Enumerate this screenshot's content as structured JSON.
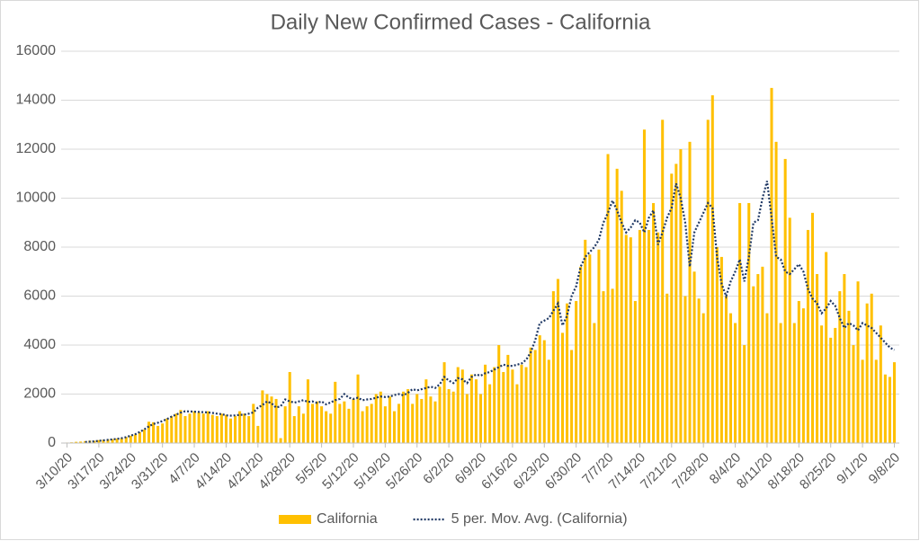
{
  "chart_data": {
    "type": "bar",
    "title": "Daily New Confirmed Cases - California",
    "categories": [
      "3/10/20",
      null,
      null,
      null,
      null,
      null,
      null,
      "3/17/20",
      null,
      null,
      null,
      null,
      null,
      null,
      "3/24/20",
      null,
      null,
      null,
      null,
      null,
      null,
      "3/31/20",
      null,
      null,
      null,
      null,
      null,
      null,
      "4/7/20",
      null,
      null,
      null,
      null,
      null,
      null,
      "4/14/20",
      null,
      null,
      null,
      null,
      null,
      null,
      "4/21/20",
      null,
      null,
      null,
      null,
      null,
      null,
      "4/28/20",
      null,
      null,
      null,
      null,
      null,
      null,
      "5/5/20",
      null,
      null,
      null,
      null,
      null,
      null,
      "5/12/20",
      null,
      null,
      null,
      null,
      null,
      null,
      "5/19/20",
      null,
      null,
      null,
      null,
      null,
      null,
      "5/26/20",
      null,
      null,
      null,
      null,
      null,
      null,
      "6/2/20",
      null,
      null,
      null,
      null,
      null,
      null,
      "6/9/20",
      null,
      null,
      null,
      null,
      null,
      null,
      "6/16/20",
      null,
      null,
      null,
      null,
      null,
      null,
      "6/23/20",
      null,
      null,
      null,
      null,
      null,
      null,
      "6/30/20",
      null,
      null,
      null,
      null,
      null,
      null,
      "7/7/20",
      null,
      null,
      null,
      null,
      null,
      null,
      "7/14/20",
      null,
      null,
      null,
      null,
      null,
      null,
      "7/21/20",
      null,
      null,
      null,
      null,
      null,
      null,
      "7/28/20",
      null,
      null,
      null,
      null,
      null,
      null,
      "8/4/20",
      null,
      null,
      null,
      null,
      null,
      null,
      "8/11/20",
      null,
      null,
      null,
      null,
      null,
      null,
      "8/18/20",
      null,
      null,
      null,
      null,
      null,
      null,
      "8/25/20",
      null,
      null,
      null,
      null,
      null,
      null,
      "9/1/20",
      null,
      null,
      null,
      null,
      null,
      null,
      "9/8/20"
    ],
    "series": [
      {
        "name": "California",
        "color": "#ffc000",
        "type": "bar",
        "values": [
          20,
          30,
          50,
          60,
          80,
          100,
          90,
          120,
          130,
          150,
          160,
          180,
          200,
          250,
          300,
          350,
          450,
          550,
          870,
          850,
          700,
          800,
          1000,
          1100,
          1200,
          1350,
          1100,
          1200,
          1300,
          1250,
          1200,
          1300,
          1150,
          1100,
          1200,
          1150,
          1000,
          1100,
          1300,
          1200,
          1100,
          1600,
          700,
          2150,
          2000,
          1900,
          1800,
          200,
          1500,
          2900,
          1100,
          1500,
          1200,
          2600,
          1600,
          1700,
          1500,
          1300,
          1200,
          2500,
          1600,
          1700,
          1400,
          1800,
          2800,
          1300,
          1500,
          1600,
          2000,
          2100,
          1500,
          1900,
          1300,
          1600,
          2100,
          2200,
          1600,
          2000,
          1800,
          2600,
          1900,
          1700,
          2300,
          3300,
          2200,
          2100,
          3100,
          3000,
          2000,
          2800,
          2600,
          2000,
          3200,
          2400,
          3100,
          4000,
          2900,
          3600,
          3000,
          2400,
          3200,
          3100,
          3900,
          3800,
          4400,
          4200,
          3400,
          6200,
          6700,
          4500,
          5700,
          3800,
          5800,
          7200,
          8300,
          7700,
          4900,
          7900,
          6200,
          11800,
          6300,
          11200,
          10300,
          8500,
          8400,
          5800,
          8700,
          12800,
          8700,
          9800,
          8600,
          13200,
          6100,
          11000,
          11400,
          12000,
          6000,
          12300,
          7000,
          5900,
          5300,
          13200,
          14200,
          8000,
          7600,
          6000,
          5300,
          4900,
          9800,
          4000,
          9800,
          6400,
          6900,
          7200,
          5300,
          14500,
          12300,
          4900,
          11600,
          9200,
          4900,
          5800,
          5500,
          8700,
          9400,
          6900,
          4800,
          7800,
          4300,
          4700,
          6200,
          6900,
          5400,
          4000,
          6600,
          3400,
          5700,
          6100,
          3400,
          4800,
          2800,
          2700,
          3300
        ]
      },
      {
        "name": "5 per. Mov. Avg. (California)",
        "color": "#1f3864",
        "type": "line",
        "style": "dotted",
        "values": [
          null,
          null,
          null,
          null,
          40,
          55,
          70,
          90,
          110,
          130,
          150,
          170,
          200,
          240,
          300,
          360,
          450,
          560,
          680,
          780,
          830,
          900,
          980,
          1080,
          1160,
          1240,
          1300,
          1290,
          1280,
          1270,
          1260,
          1250,
          1230,
          1200,
          1180,
          1130,
          1120,
          1130,
          1150,
          1160,
          1200,
          1250,
          1450,
          1550,
          1700,
          1620,
          1450,
          1500,
          1780,
          1700,
          1650,
          1700,
          1750,
          1680,
          1700,
          1640,
          1700,
          1580,
          1660,
          1750,
          1800,
          2000,
          1850,
          1800,
          1850,
          1750,
          1780,
          1800,
          1850,
          1900,
          1880,
          1900,
          1960,
          2000,
          1950,
          2050,
          2200,
          2150,
          2200,
          2250,
          2300,
          2250,
          2400,
          2700,
          2550,
          2450,
          2650,
          2600,
          2450,
          2700,
          2800,
          2750,
          2850,
          2900,
          3000,
          3100,
          3200,
          3150,
          3150,
          3200,
          3250,
          3400,
          3700,
          4200,
          4900,
          5000,
          5100,
          5400,
          5700,
          4800,
          5200,
          6000,
          6400,
          7200,
          7600,
          7800,
          8000,
          8300,
          9000,
          9400,
          9900,
          9500,
          9000,
          8600,
          8800,
          9100,
          9000,
          8600,
          9200,
          9500,
          8100,
          8600,
          9200,
          9600,
          10600,
          10000,
          9000,
          7200,
          8600,
          9000,
          9400,
          9800,
          9600,
          7600,
          6500,
          6000,
          6600,
          7000,
          7500,
          6600,
          7600,
          9000,
          9100,
          10000,
          10700,
          9200,
          7600,
          7500,
          7000,
          6900,
          7100,
          7300,
          7000,
          6300,
          5900,
          5700,
          5300,
          5500,
          5800,
          5600,
          5100,
          4700,
          4900,
          4800,
          4600,
          4900,
          4800,
          4700,
          4500,
          4300,
          4100,
          3900,
          3800
        ]
      }
    ],
    "ylim": [
      0,
      16000
    ],
    "yticks": [
      0,
      2000,
      4000,
      6000,
      8000,
      10000,
      12000,
      14000,
      16000
    ],
    "grid": true,
    "legend": "bottom"
  }
}
